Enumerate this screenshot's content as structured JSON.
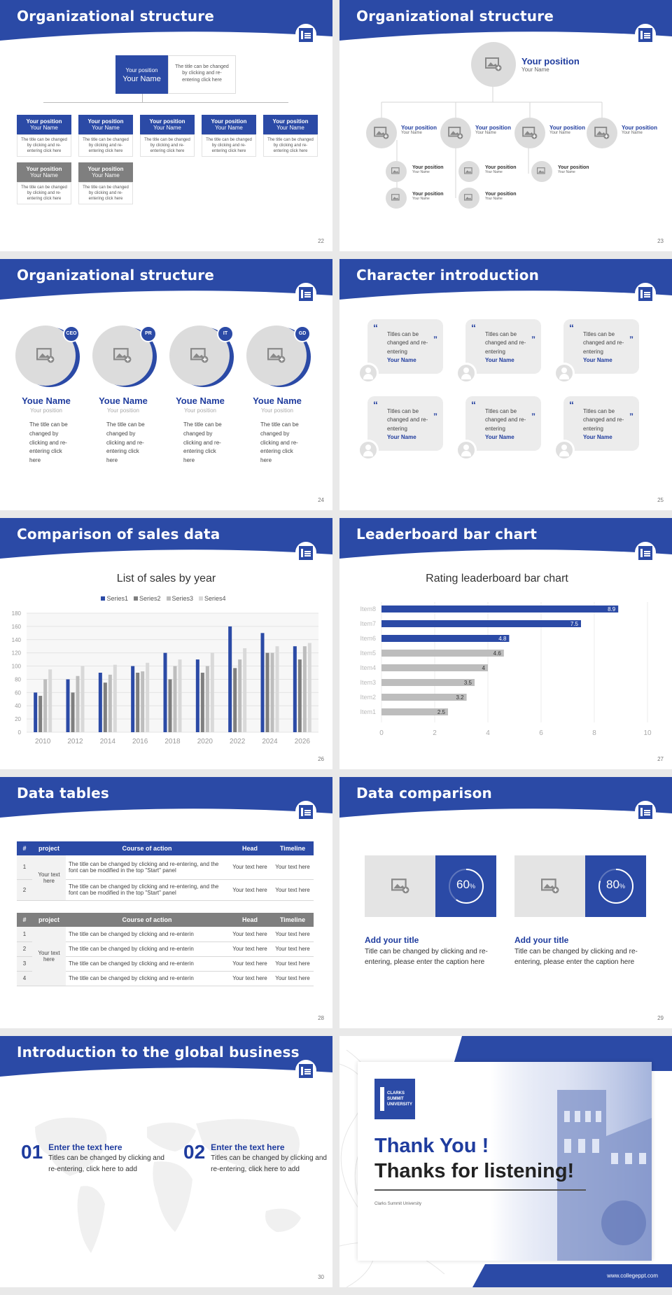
{
  "colors": {
    "primary": "#2b4aa6",
    "gray": "#bdbdbd",
    "dark_gray": "#7f7f7f",
    "light_gray": "#e6e6e6"
  },
  "s22": {
    "title": "Organizational structure",
    "page": "22",
    "top": {
      "position": "Your position",
      "name": "Your Name",
      "desc": "The title can be changed by clicking and re-entering click here"
    },
    "row1": [
      {
        "position": "Your position",
        "name": "Your Name",
        "desc": "The title can be changed by clicking and re-entering click here"
      },
      {
        "position": "Your position",
        "name": "Your Name",
        "desc": "The title can be changed by clicking and re-entering click here"
      },
      {
        "position": "Your position",
        "name": "Your Name",
        "desc": "The title can be changed by clicking and re-entering click here"
      },
      {
        "position": "Your position",
        "name": "Your Name",
        "desc": "The title can be changed by clicking and re-entering click here"
      },
      {
        "position": "Your position",
        "name": "Your Name",
        "desc": "The title can be changed by clicking and re-entering click here"
      }
    ],
    "row2": [
      {
        "position": "Your position",
        "name": "Your Name",
        "desc": "The title can be changed by clicking and re-entering click here"
      },
      {
        "position": "Your position",
        "name": "Your Name",
        "desc": "The title can be changed by clicking and re-entering click here"
      }
    ]
  },
  "s23": {
    "title": "Organizational structure",
    "page": "23",
    "top": {
      "position": "Your position",
      "name": "Your Name"
    },
    "mid": [
      {
        "position": "Your position",
        "name": "Your Name"
      },
      {
        "position": "Your position",
        "name": "Your Name"
      },
      {
        "position": "Your position",
        "name": "Your Name"
      },
      {
        "position": "Your position",
        "name": "Your Name"
      }
    ],
    "sub": [
      {
        "position": "Your position",
        "name": "Your Name"
      },
      {
        "position": "Your position",
        "name": "Your Name"
      },
      {
        "position": "Your position",
        "name": "Your Name"
      },
      {
        "position": "Your position",
        "name": "Your Name"
      },
      {
        "position": "Your position",
        "name": "Your Name"
      }
    ]
  },
  "s24": {
    "title": "Organizational structure",
    "page": "24",
    "people": [
      {
        "badge": "CEO",
        "name": "Youe Name",
        "position": "Your position",
        "desc": "The title can be changed by clicking and re-entering click here"
      },
      {
        "badge": "PR",
        "name": "Youe Name",
        "position": "Your position",
        "desc": "The title can be changed by clicking and re-entering click here"
      },
      {
        "badge": "IT",
        "name": "Youe Name",
        "position": "Your position",
        "desc": "The title can be changed by clicking and re-entering click here"
      },
      {
        "badge": "GD",
        "name": "Youe Name",
        "position": "Your position",
        "desc": "The title can be changed by clicking and re-entering click here"
      }
    ]
  },
  "s25": {
    "title": "Character introduction",
    "page": "25",
    "cards": [
      {
        "text": "Titles can be changed and re-entering",
        "name": "Your Name"
      },
      {
        "text": "Titles can be changed and re-entering",
        "name": "Your Name"
      },
      {
        "text": "Titles can be changed and re-entering",
        "name": "Your Name"
      },
      {
        "text": "Titles can be changed and re-entering",
        "name": "Your Name"
      },
      {
        "text": "Titles can be changed and re-entering",
        "name": "Your Name"
      },
      {
        "text": "Titles can be changed and re-entering",
        "name": "Your Name"
      }
    ]
  },
  "s26": {
    "title": "Comparison of sales data",
    "page": "26"
  },
  "s27": {
    "title": "Leaderboard bar chart",
    "page": "27"
  },
  "chart_data": [
    {
      "type": "bar",
      "title": "List of sales by year",
      "categories": [
        "2010",
        "2012",
        "2014",
        "2016",
        "2018",
        "2020",
        "2022",
        "2024",
        "2026"
      ],
      "series": [
        {
          "name": "Series1",
          "color": "#2b4aa6",
          "values": [
            60,
            80,
            90,
            100,
            120,
            110,
            160,
            150,
            130
          ]
        },
        {
          "name": "Series2",
          "color": "#7f7f7f",
          "values": [
            55,
            60,
            75,
            90,
            80,
            90,
            97,
            120,
            110
          ]
        },
        {
          "name": "Series3",
          "color": "#bdbdbd",
          "values": [
            80,
            85,
            87,
            92,
            100,
            100,
            110,
            120,
            130
          ]
        },
        {
          "name": "Series4",
          "color": "#d9d9d9",
          "values": [
            95,
            100,
            102,
            105,
            110,
            120,
            127,
            130,
            135
          ]
        }
      ],
      "ylim": [
        0,
        180
      ],
      "yticks": [
        "0",
        "20",
        "40",
        "60",
        "80",
        "100",
        "120",
        "140",
        "160",
        "180"
      ],
      "legend": "top"
    },
    {
      "type": "bar",
      "orientation": "horizontal",
      "title": "Rating leaderboard bar chart",
      "categories": [
        "Item8",
        "Item7",
        "Item6",
        "Item5",
        "Item4",
        "Item3",
        "Item2",
        "Item1"
      ],
      "values": [
        8.9,
        7.5,
        4.8,
        4.6,
        4,
        3.5,
        3.2,
        2.5
      ],
      "labels": [
        "8.9",
        "7.5",
        "4.8",
        "4.6",
        "4",
        "3.5",
        "3.2",
        "2.5"
      ],
      "highlight_top": 3,
      "xlim": [
        0,
        10
      ],
      "xticks": [
        "0",
        "2",
        "4",
        "6",
        "8",
        "10"
      ]
    }
  ],
  "s28": {
    "title": "Data tables",
    "page": "28",
    "headers": [
      "#",
      "project",
      "Course of action",
      "Head",
      "Timeline"
    ],
    "t1": {
      "project": "Your text here",
      "rows": [
        {
          "n": "1",
          "action": "The title can be changed by clicking and re-entering, and the font can be modified in the top \"Start\" panel",
          "head": "Your text here",
          "time": "Your text here"
        },
        {
          "n": "2",
          "action": "The title can be changed by clicking and re-entering, and the font can be modified in the top \"Start\" panel",
          "head": "Your text here",
          "time": "Your text here"
        }
      ]
    },
    "t2": {
      "project": "Your text here",
      "rows": [
        {
          "n": "1",
          "action": "The title can be changed by clicking and re-enterin",
          "head": "Your text here",
          "time": "Your text here"
        },
        {
          "n": "2",
          "action": "The title can be changed by clicking and re-enterin",
          "head": "Your text here",
          "time": "Your text here"
        },
        {
          "n": "3",
          "action": "The title can be changed by clicking and re-enterin",
          "head": "Your text here",
          "time": "Your text here"
        },
        {
          "n": "4",
          "action": "The title can be changed by clicking and re-enterin",
          "head": "Your text here",
          "time": "Your text here"
        }
      ]
    }
  },
  "s29": {
    "title": "Data comparison",
    "page": "29",
    "items": [
      {
        "percent": 60,
        "label": "60",
        "unit": "%",
        "title": "Add your title",
        "desc": "Title can be changed by clicking and re-entering, please enter the caption here"
      },
      {
        "percent": 80,
        "label": "80",
        "unit": "%",
        "title": "Add your title",
        "desc": "Title can be changed by clicking and re-entering, please enter the caption here"
      }
    ]
  },
  "s30": {
    "title": "Introduction to the global business",
    "page": "30",
    "items": [
      {
        "num": "01",
        "title": "Enter the text here",
        "desc": "Titles can be changed by clicking and re-entering, click here to add"
      },
      {
        "num": "02",
        "title": "Enter the text here",
        "desc": "Titles can be changed by clicking and re-entering, click here to add"
      }
    ]
  },
  "s31": {
    "logo_text": "CLARKS SUMMIT UNIVERSITY",
    "thank": "Thank You !",
    "thanks": "Thanks for listening!",
    "university": "Clarks Summit University",
    "url": "www.collegeppt.com"
  }
}
